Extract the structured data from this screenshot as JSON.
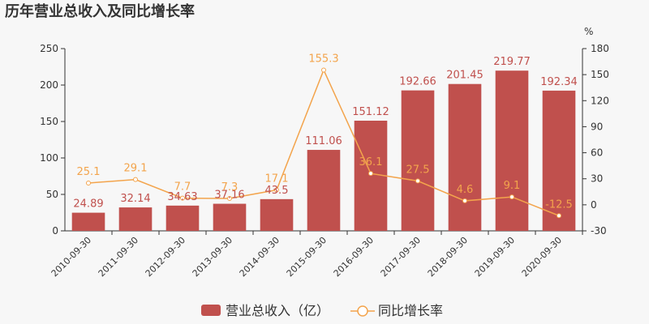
{
  "chart_data": {
    "type": "bar+line",
    "title": "历年营业总收入及同比增长率",
    "categories": [
      "2010-09-30",
      "2011-09-30",
      "2012-09-30",
      "2013-09-30",
      "2014-09-30",
      "2015-09-30",
      "2016-09-30",
      "2017-09-30",
      "2018-09-30",
      "2019-09-30",
      "2020-09-30"
    ],
    "series": [
      {
        "name": "营业总收入（亿）",
        "type": "bar",
        "axis": "left",
        "values": [
          24.89,
          32.14,
          34.63,
          37.16,
          43.5,
          111.06,
          151.12,
          192.66,
          201.45,
          219.77,
          192.34
        ],
        "color": "#c0504d"
      },
      {
        "name": "同比增长率",
        "type": "line",
        "axis": "right",
        "values": [
          25.1,
          29.1,
          7.7,
          7.3,
          17.1,
          155.3,
          36.1,
          27.5,
          4.6,
          9.1,
          -12.5
        ],
        "color": "#f3a44c"
      }
    ],
    "y_left": {
      "min": 0,
      "max": 250,
      "ticks": [
        0,
        50,
        100,
        150,
        200,
        250
      ]
    },
    "y_right": {
      "min": -30,
      "max": 180,
      "ticks": [
        -30,
        0,
        30,
        60,
        90,
        120,
        150,
        180
      ],
      "unit": "%"
    },
    "legend": "bottom-center",
    "grid": false
  }
}
